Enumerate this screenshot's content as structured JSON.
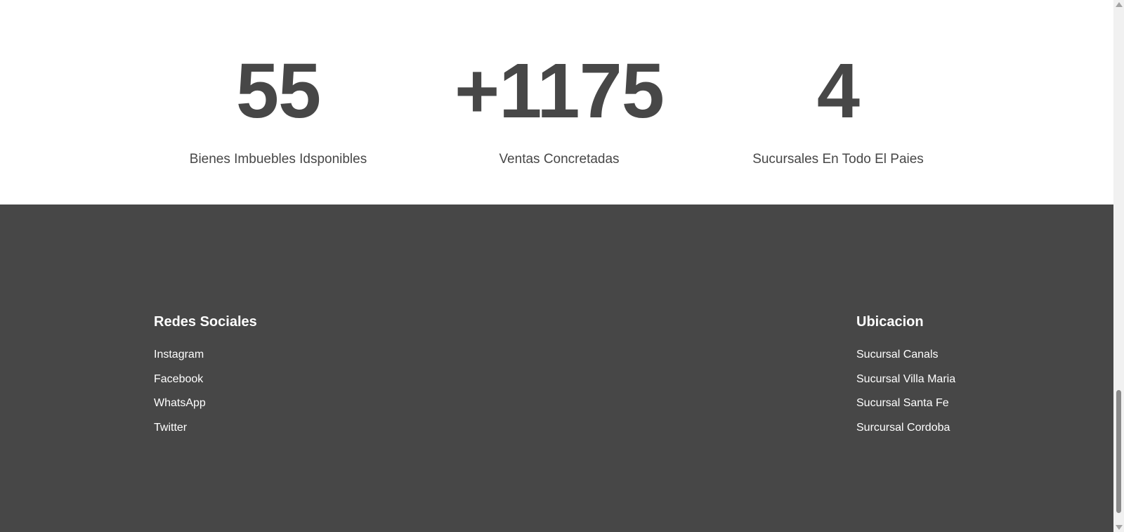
{
  "stats": [
    {
      "number": "55",
      "label": "Bienes Imbuebles Idsponibles"
    },
    {
      "number": "+1175",
      "label": "Ventas Concretadas"
    },
    {
      "number": "4",
      "label": "Sucursales En Todo El Paies"
    }
  ],
  "footer": {
    "social": {
      "heading": "Redes Sociales",
      "links": [
        "Instagram",
        "Facebook",
        "WhatsApp",
        "Twitter"
      ]
    },
    "location": {
      "heading": "Ubicacion",
      "links": [
        "Sucursal Canals",
        "Sucursal Villa Maria",
        "Sucursal Santa Fe",
        "Surcursal Cordoba"
      ]
    }
  },
  "colors": {
    "text_dark": "#474747",
    "footer_bg": "#474747",
    "footer_text": "#ffffff"
  },
  "icons": {
    "scroll_up": "scroll-up-arrow-icon",
    "scroll_down": "scroll-down-arrow-icon"
  }
}
